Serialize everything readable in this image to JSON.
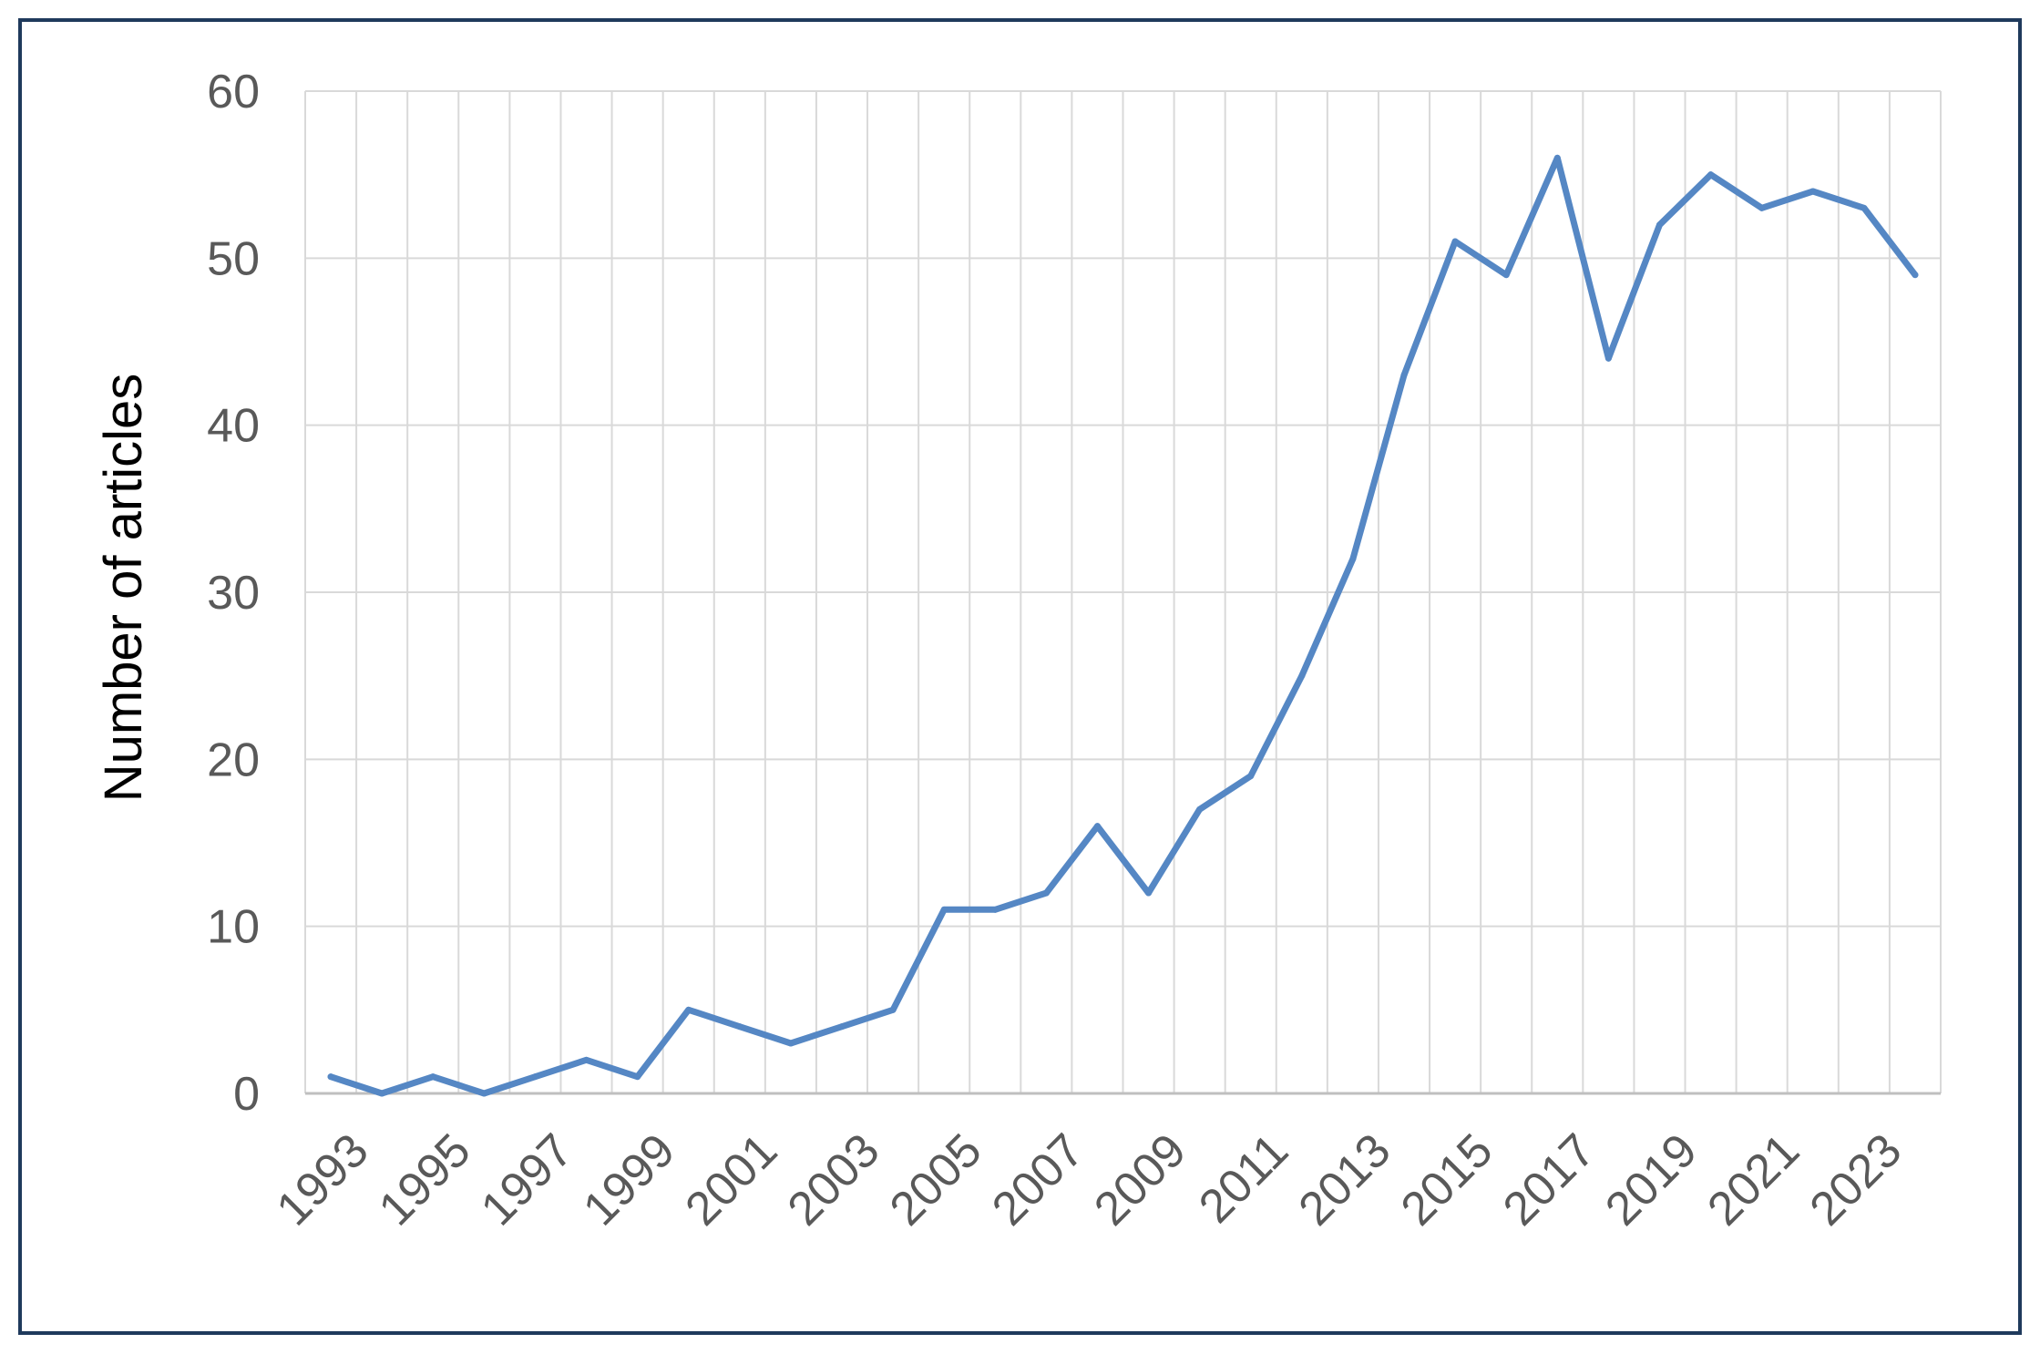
{
  "chart_data": {
    "type": "line",
    "title": "",
    "xlabel": "",
    "ylabel": "Number of articles",
    "ylim": [
      0,
      60
    ],
    "yticks": [
      0,
      10,
      20,
      30,
      40,
      50,
      60
    ],
    "xtick_labels": [
      "1993",
      "1995",
      "1997",
      "1999",
      "2001",
      "2003",
      "2005",
      "2007",
      "2009",
      "2011",
      "2013",
      "2015",
      "2017",
      "2019",
      "2021",
      "2023"
    ],
    "grid": true,
    "legend": "none",
    "line_color": "#5587c4",
    "frame_color": "#1f3a5c",
    "series": [
      {
        "x": [
          1993,
          1994,
          1995,
          1996,
          1997,
          1998,
          1999,
          2000,
          2001,
          2002,
          2003,
          2004,
          2005,
          2006,
          2007,
          2008,
          2009,
          2010,
          2011,
          2012,
          2013,
          2014,
          2015,
          2016,
          2017,
          2018,
          2019,
          2020,
          2021,
          2022,
          2023,
          2024
        ],
        "values": [
          1,
          0,
          1,
          0,
          1,
          2,
          1,
          5,
          4,
          3,
          4,
          5,
          11,
          11,
          12,
          16,
          12,
          17,
          19,
          25,
          32,
          43,
          51,
          49,
          56,
          44,
          52,
          55,
          53,
          54,
          53,
          49
        ]
      }
    ]
  }
}
